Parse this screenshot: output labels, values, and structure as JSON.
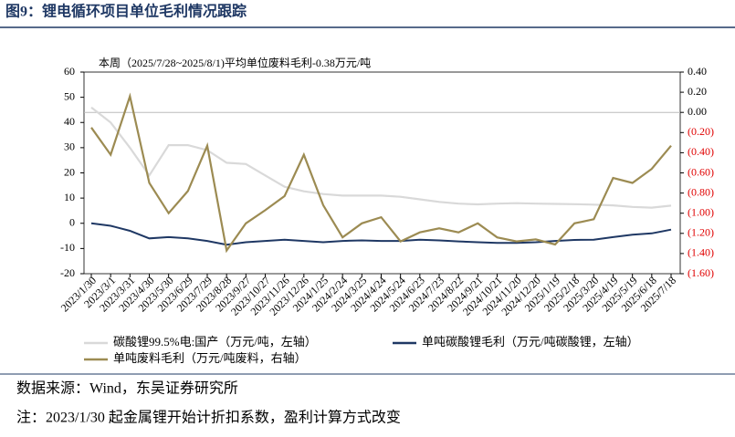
{
  "title": "图9：锂电循环项目单位毛利情况跟踪",
  "chart_data": {
    "type": "line",
    "annotation": "本周（2025/7/28~2025/8/1)平均单位废料毛利-0.38万元/吨",
    "x": [
      "2023/1/30",
      "2023/3/1",
      "2023/3/31",
      "2023/4/30",
      "2023/5/30",
      "2023/6/29",
      "2023/7/29",
      "2023/8/28",
      "2023/9/27",
      "2023/10/27",
      "2023/11/26",
      "2023/12/26",
      "2024/1/25",
      "2024/2/24",
      "2024/3/25",
      "2024/4/24",
      "2024/5/24",
      "2024/6/23",
      "2024/7/23",
      "2024/8/22",
      "2024/9/21",
      "2024/10/21",
      "2024/11/20",
      "2024/12/20",
      "2025/1/19",
      "2025/2/18",
      "2025/3/20",
      "2025/4/19",
      "2025/5/19",
      "2025/6/18",
      "2025/7/18"
    ],
    "series": [
      {
        "name": "碳酸锂99.5%电:国产（万元/吨，左轴）",
        "color": "#d9d9d9",
        "values": [
          46,
          40,
          30,
          19,
          31,
          31,
          29,
          24,
          23.5,
          19,
          14.5,
          12.7,
          11.6,
          11,
          11,
          11,
          10.5,
          9.5,
          8.5,
          7.8,
          7.5,
          7.8,
          8,
          7.8,
          7.7,
          7.6,
          7.4,
          7.1,
          6.5,
          6.2,
          7
        ]
      },
      {
        "name": "单吨碳酸锂毛利（万元/吨碳酸锂，左轴）",
        "color": "#1f3864",
        "values": [
          0,
          -1,
          -3,
          -6,
          -5.5,
          -6,
          -7,
          -8.5,
          -7.5,
          -7,
          -6.5,
          -7,
          -7.5,
          -7,
          -6.8,
          -7,
          -7,
          -6.5,
          -6.8,
          -7.2,
          -7.5,
          -7.8,
          -7.8,
          -7.5,
          -7,
          -6.6,
          -6.5,
          -5.5,
          -4.5,
          -4,
          -2.5
        ]
      },
      {
        "name": "单吨废料毛利（万元/吨废料，右轴）",
        "color": "#9c8b52",
        "axis": "y2",
        "values": [
          -0.15,
          -0.42,
          0.16,
          -0.7,
          -1.0,
          -0.78,
          -0.33,
          -1.37,
          -1.1,
          -0.97,
          -0.83,
          -0.42,
          -0.92,
          -1.24,
          -1.1,
          -1.04,
          -1.28,
          -1.19,
          -1.15,
          -1.19,
          -1.1,
          -1.24,
          -1.28,
          -1.26,
          -1.31,
          -1.1,
          -1.06,
          -0.65,
          -0.7,
          -0.56,
          -0.33
        ]
      }
    ],
    "ylim": [
      -20,
      60
    ],
    "yticks": [
      -20,
      -10,
      0,
      10,
      20,
      30,
      40,
      50,
      60
    ],
    "y2lim": [
      -1.6,
      0.4
    ],
    "y2ticks": [
      {
        "value": 0.4,
        "label": "0.40"
      },
      {
        "value": 0.2,
        "label": "0.20"
      },
      {
        "value": 0,
        "label": "0.00"
      },
      {
        "value": -0.2,
        "label": "(0.20)"
      },
      {
        "value": -0.4,
        "label": "(0.40)"
      },
      {
        "value": -0.6,
        "label": "(0.60)"
      },
      {
        "value": -0.8,
        "label": "(0.80)"
      },
      {
        "value": -1.0,
        "label": "(1.00)"
      },
      {
        "value": -1.2,
        "label": "(1.20)"
      },
      {
        "value": -1.4,
        "label": "(1.40)"
      },
      {
        "value": -1.6,
        "label": "(1.60)"
      }
    ],
    "y2_negative_tick_color": "#e00000",
    "y2_reference_line": 0
  },
  "source": "数据来源：Wind，东吴证券研究所",
  "note": "注：2023/1/30 起金属锂开始计折扣系数，盈利计算方式改变"
}
